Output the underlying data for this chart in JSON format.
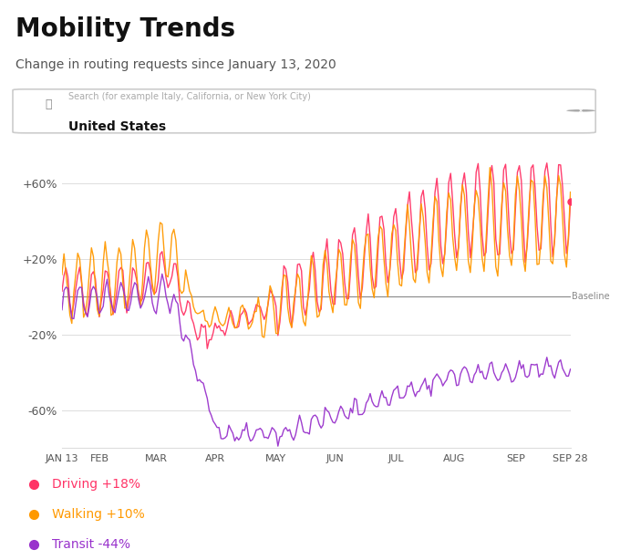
{
  "title": "Mobility Trends",
  "subtitle": "Change in routing requests since January 13, 2020",
  "search_placeholder": "Search (for example Italy, California, or New York City)",
  "search_value": "United States",
  "baseline_label": "Baseline",
  "yticks": [
    -60,
    -20,
    20,
    60
  ],
  "ytick_labels": [
    "-60%",
    "-20%",
    "+20%",
    "+60%"
  ],
  "xtick_labels": [
    "JAN 13",
    "FEB",
    "MAR",
    "APR",
    "MAY",
    "JUN",
    "JUL",
    "AUG",
    "SEP",
    "SEP 28"
  ],
  "legend": [
    {
      "label": "Driving +18%",
      "color": "#FF3366"
    },
    {
      "label": "Walking +10%",
      "color": "#FF9900"
    },
    {
      "label": "Transit -44%",
      "color": "#9933CC"
    }
  ],
  "bg_color": "#FFFFFF",
  "grid_color": "#DDDDDD",
  "driving_color": "#FF3366",
  "walking_color": "#FF9900",
  "transit_color": "#9933CC",
  "ylim": [
    -80,
    80
  ]
}
